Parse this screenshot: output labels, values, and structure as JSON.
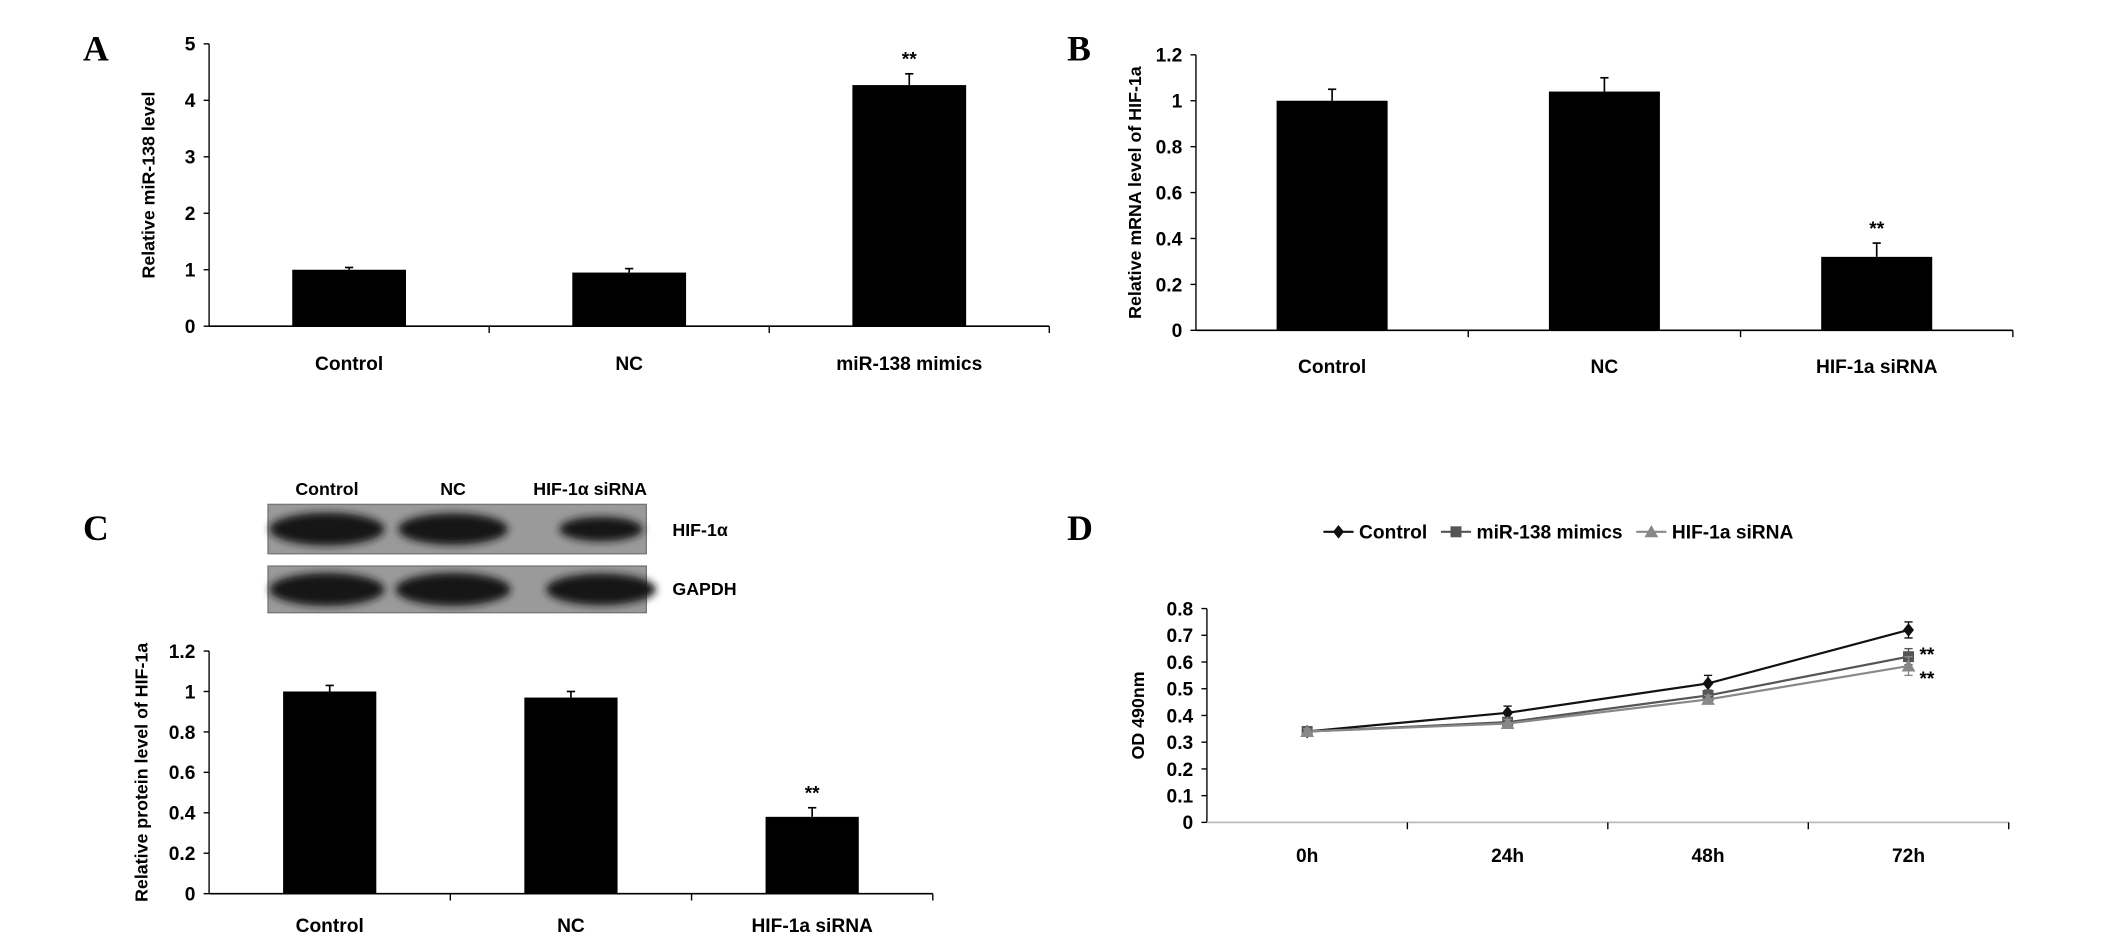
{
  "panels": {
    "a": "A",
    "b": "B",
    "c": "C",
    "d": "D"
  },
  "chart_data": [
    {
      "id": "A",
      "type": "bar",
      "categories": [
        "Control",
        "NC",
        "miR-138 mimics"
      ],
      "values": [
        1.0,
        0.95,
        4.27
      ],
      "errors": [
        0.04,
        0.07,
        0.2
      ],
      "significance": [
        "",
        "",
        "**"
      ],
      "ylabel": "Relative miR-138 level",
      "ylim": [
        0,
        5
      ],
      "yticks": [
        0,
        1,
        2,
        3,
        4,
        5
      ],
      "ytick_labels": [
        "0",
        "1",
        "2",
        "3",
        "4",
        "5"
      ]
    },
    {
      "id": "B",
      "type": "bar",
      "categories": [
        "Control",
        "NC",
        "HIF-1a siRNA"
      ],
      "values": [
        1.0,
        1.04,
        0.32
      ],
      "errors": [
        0.05,
        0.06,
        0.06
      ],
      "significance": [
        "",
        "",
        "**"
      ],
      "ylabel": "Relative mRNA level of HIF-1a",
      "ylim": [
        0,
        1.2
      ],
      "yticks": [
        0,
        0.2,
        0.4,
        0.6,
        0.8,
        1,
        1.2
      ],
      "ytick_labels": [
        "0",
        "0.2",
        "0.4",
        "0.6",
        "0.8",
        "1",
        "1.2"
      ]
    },
    {
      "id": "C",
      "type": "bar",
      "categories": [
        "Control",
        "NC",
        "HIF-1a siRNA"
      ],
      "values": [
        1.0,
        0.97,
        0.38
      ],
      "errors": [
        0.03,
        0.03,
        0.045
      ],
      "significance": [
        "",
        "",
        "**"
      ],
      "ylabel": "Relative protein level of HIF-1a",
      "ylim": [
        0,
        1.2
      ],
      "yticks": [
        0,
        0.2,
        0.4,
        0.6,
        0.8,
        1,
        1.2
      ],
      "ytick_labels": [
        "0",
        "0.2",
        "0.4",
        "0.6",
        "0.8",
        "1",
        "1.2"
      ]
    },
    {
      "id": "D",
      "type": "line",
      "x": [
        "0h",
        "24h",
        "48h",
        "72h"
      ],
      "series": [
        {
          "name": "Control",
          "values": [
            0.34,
            0.41,
            0.52,
            0.72
          ],
          "errors": [
            0.01,
            0.025,
            0.03,
            0.03
          ],
          "color": "#111111",
          "marker": "diamond",
          "significance": ""
        },
        {
          "name": "miR-138 mimics",
          "values": [
            0.34,
            0.375,
            0.475,
            0.62
          ],
          "errors": [
            0.01,
            0.015,
            0.02,
            0.03
          ],
          "color": "#555555",
          "marker": "square",
          "significance": "**"
        },
        {
          "name": "HIF-1a siRNA",
          "values": [
            0.34,
            0.37,
            0.46,
            0.585
          ],
          "errors": [
            0.01,
            0.015,
            0.015,
            0.035
          ],
          "color": "#888888",
          "marker": "triangle",
          "significance": "**"
        }
      ],
      "ylabel": "OD 490nm",
      "ylim": [
        0,
        0.8
      ],
      "yticks": [
        0,
        0.1,
        0.2,
        0.3,
        0.4,
        0.5,
        0.6,
        0.7,
        0.8
      ],
      "ytick_labels": [
        "0",
        "0.1",
        "0.2",
        "0.3",
        "0.4",
        "0.5",
        "0.6",
        "0.7",
        "0.8"
      ],
      "legend": "top"
    }
  ],
  "blot": {
    "lanes": [
      "Control",
      "NC",
      "HIF-1α siRNA"
    ],
    "rows": [
      "HIF-1α",
      "GAPDH"
    ],
    "band_intensity": [
      [
        1.0,
        0.95,
        0.7
      ],
      [
        1.0,
        1.0,
        0.95
      ]
    ]
  }
}
